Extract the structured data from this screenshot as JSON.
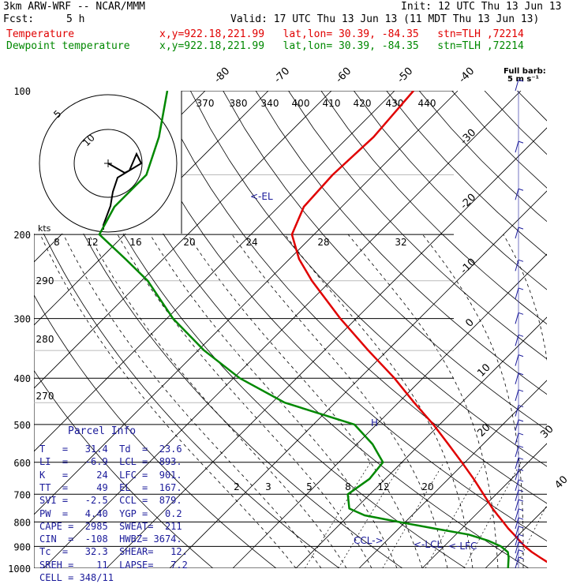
{
  "header": {
    "model": "3km ARW-WRF -- NCAR/MMM",
    "fcst_label": "Fcst:",
    "fcst_value": "5 h",
    "init": "Init: 12 UTC Thu 13 Jun 13",
    "valid": "Valid: 17 UTC Thu 13 Jun 13 (11 MDT Thu 13 Jun 13)"
  },
  "legend": [
    {
      "name": "Temperature",
      "info": "x,y=922.18,221.99   lat,lon= 30.39, -84.35   stn=TLH ,72214",
      "color": "#e00000"
    },
    {
      "name": "Dewpoint temperature",
      "info": "x,y=922.18,221.99   lat,lon= 30.39, -84.35   stn=TLH ,72214",
      "color": "#008800"
    }
  ],
  "barb_key": {
    "title": "Full barb:",
    "units": "5 m s⁻¹"
  },
  "hodograph": {
    "ring_labels": [
      "5",
      "10"
    ],
    "units": "kts",
    "speed_labels": [
      "8",
      "12",
      "16",
      "20",
      "24",
      "28",
      "32"
    ]
  },
  "annotations": {
    "el": "<-EL",
    "lcl": "<-LCL",
    "lfc": "<-LFC",
    "ccl": "CCL->",
    "h": "H"
  },
  "parcel_info": {
    "title": "Parcel Info",
    "rows": [
      "T   =   31.4  Td  =  23.6",
      "LI  =   -6.9  LCL =  893.",
      "K   =     24  LFC =  901.",
      "TT  =     49  EL  =  167.",
      "SVI =   -2.5  CCL =  879.",
      "PW  =   4.40  YGP =   0.2",
      "CAPE =  2985  SWEAT=  211",
      "CIN  =  -108  HWBZ= 3674.",
      "Tc  =   32.3  SHEAR=   12.",
      "SREH =    11  LAPSE=   7.2",
      "CELL = 348/11"
    ]
  },
  "chart_data": {
    "type": "skew-t",
    "pressure_ticks": [
      100,
      200,
      300,
      400,
      500,
      600,
      700,
      800,
      900,
      1000
    ],
    "isotherm_labels": [
      -80,
      -70,
      -60,
      -50,
      -40,
      -30,
      -20,
      -10,
      0,
      10,
      20,
      30,
      40
    ],
    "theta_labels": [
      370,
      380,
      340,
      400,
      410,
      420,
      430,
      440
    ],
    "theta_left_labels": [
      290,
      280,
      270
    ],
    "mixing_ratio_labels": [
      "2",
      "3",
      "5",
      "8",
      "12",
      "20"
    ],
    "temperature": {
      "name": "Temperature",
      "p": [
        1000,
        975,
        950,
        925,
        900,
        875,
        850,
        825,
        800,
        775,
        750,
        700,
        650,
        600,
        550,
        500,
        450,
        400,
        350,
        300,
        250,
        225,
        200,
        175,
        150,
        125,
        100
      ],
      "t": [
        31.4,
        29.2,
        27.0,
        24.8,
        22.8,
        21.0,
        19.2,
        17.3,
        15.5,
        13.6,
        11.7,
        8.0,
        4.0,
        -0.5,
        -5.5,
        -11.0,
        -17.5,
        -24.5,
        -33.0,
        -42.5,
        -53.0,
        -58.5,
        -63.5,
        -66.0,
        -66.5,
        -66.0,
        -67.0
      ]
    },
    "dewpoint": {
      "name": "Dewpoint temperature",
      "p": [
        1000,
        975,
        950,
        925,
        900,
        875,
        850,
        825,
        800,
        775,
        750,
        700,
        650,
        600,
        550,
        500,
        450,
        400,
        350,
        300,
        250,
        225,
        200,
        175,
        150,
        125,
        100
      ],
      "td": [
        23.6,
        22.8,
        22.0,
        21.0,
        19.0,
        16.0,
        12.0,
        5.5,
        -1.0,
        -7.5,
        -11.0,
        -13.5,
        -12.5,
        -13.0,
        -17.5,
        -23.5,
        -38.0,
        -49.0,
        -59.0,
        -69.0,
        -79.0,
        -86.0,
        -94.0,
        -96.0,
        -96.0,
        -100.0,
        -106.0
      ]
    },
    "hodograph_trace": [
      [
        0,
        0
      ],
      [
        3.5,
        -2
      ],
      [
        4.5,
        -1.5
      ],
      [
        6,
        2
      ],
      [
        7,
        0
      ],
      [
        2,
        -3
      ],
      [
        1,
        -6
      ],
      [
        0.5,
        -9
      ],
      [
        -1,
        -13
      ],
      [
        -1,
        -14
      ]
    ]
  },
  "barbs": {
    "count": 27,
    "color": "#1a1a9a"
  }
}
